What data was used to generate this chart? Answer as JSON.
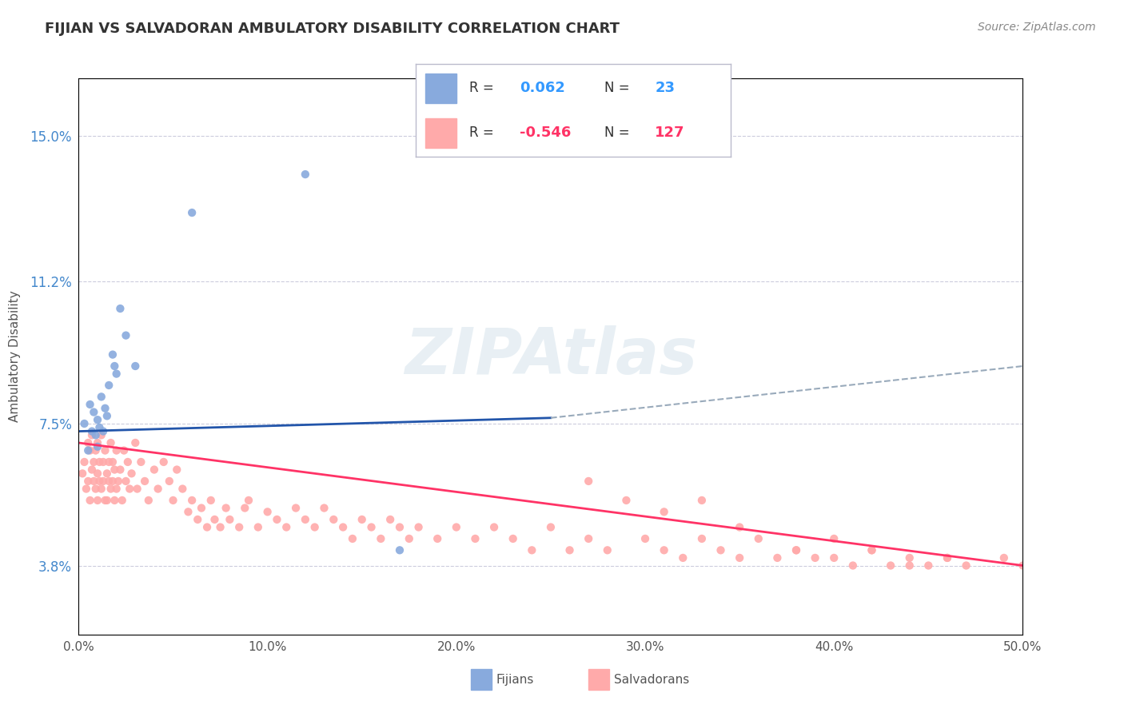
{
  "title": "FIJIAN VS SALVADORAN AMBULATORY DISABILITY CORRELATION CHART",
  "source": "Source: ZipAtlas.com",
  "ylabel": "Ambulatory Disability",
  "xlim": [
    0.0,
    0.5
  ],
  "ylim": [
    0.02,
    0.165
  ],
  "yticks": [
    0.038,
    0.075,
    0.112,
    0.15
  ],
  "ytick_labels": [
    "3.8%",
    "7.5%",
    "11.2%",
    "15.0%"
  ],
  "xticks": [
    0.0,
    0.1,
    0.2,
    0.3,
    0.4,
    0.5
  ],
  "xtick_labels": [
    "0.0%",
    "10.0%",
    "20.0%",
    "30.0%",
    "40.0%",
    "50.0%"
  ],
  "fijian_color": "#88AADD",
  "salvadoran_color": "#FFAAAA",
  "fijian_R": 0.062,
  "fijian_N": 23,
  "salvadoran_R": -0.546,
  "salvadoran_N": 127,
  "fijian_line_color": "#2255AA",
  "salvadoran_line_color": "#FF3366",
  "dashed_line_color": "#99AABB",
  "watermark": "ZIPAtlas",
  "legend_fijian_label": "Fijians",
  "legend_salvadoran_label": "Salvadorans",
  "background_color": "#FFFFFF",
  "grid_color": "#CCCCDD",
  "axis_label_color": "#4488CC",
  "title_color": "#333333",
  "fijian_line_start_y": 0.073,
  "fijian_line_end_y": 0.08,
  "fijian_line_dash_end_y": 0.09,
  "salvadoran_line_start_y": 0.07,
  "salvadoran_line_end_y": 0.038,
  "fijian_scatter_x": [
    0.003,
    0.005,
    0.006,
    0.007,
    0.008,
    0.009,
    0.01,
    0.01,
    0.011,
    0.012,
    0.013,
    0.014,
    0.015,
    0.016,
    0.018,
    0.019,
    0.02,
    0.022,
    0.025,
    0.03,
    0.06,
    0.12,
    0.17
  ],
  "fijian_scatter_y": [
    0.075,
    0.068,
    0.08,
    0.073,
    0.078,
    0.072,
    0.076,
    0.069,
    0.074,
    0.082,
    0.073,
    0.079,
    0.077,
    0.085,
    0.093,
    0.09,
    0.088,
    0.105,
    0.098,
    0.09,
    0.13,
    0.14,
    0.042
  ],
  "salvadoran_scatter_x": [
    0.002,
    0.003,
    0.004,
    0.005,
    0.005,
    0.006,
    0.006,
    0.007,
    0.007,
    0.008,
    0.008,
    0.009,
    0.009,
    0.01,
    0.01,
    0.01,
    0.011,
    0.011,
    0.012,
    0.012,
    0.013,
    0.013,
    0.014,
    0.014,
    0.015,
    0.015,
    0.016,
    0.016,
    0.017,
    0.017,
    0.018,
    0.018,
    0.019,
    0.019,
    0.02,
    0.02,
    0.021,
    0.022,
    0.023,
    0.024,
    0.025,
    0.026,
    0.027,
    0.028,
    0.03,
    0.031,
    0.033,
    0.035,
    0.037,
    0.04,
    0.042,
    0.045,
    0.048,
    0.05,
    0.052,
    0.055,
    0.058,
    0.06,
    0.063,
    0.065,
    0.068,
    0.07,
    0.072,
    0.075,
    0.078,
    0.08,
    0.085,
    0.088,
    0.09,
    0.095,
    0.1,
    0.105,
    0.11,
    0.115,
    0.12,
    0.125,
    0.13,
    0.135,
    0.14,
    0.145,
    0.15,
    0.155,
    0.16,
    0.165,
    0.17,
    0.175,
    0.18,
    0.19,
    0.2,
    0.21,
    0.22,
    0.23,
    0.24,
    0.25,
    0.26,
    0.27,
    0.28,
    0.3,
    0.31,
    0.32,
    0.33,
    0.34,
    0.35,
    0.36,
    0.37,
    0.38,
    0.39,
    0.4,
    0.41,
    0.42,
    0.43,
    0.44,
    0.45,
    0.46,
    0.47,
    0.49,
    0.5,
    0.33,
    0.35,
    0.27,
    0.29,
    0.31,
    0.38,
    0.4,
    0.42,
    0.44,
    0.46
  ],
  "salvadoran_scatter_y": [
    0.062,
    0.065,
    0.058,
    0.07,
    0.06,
    0.068,
    0.055,
    0.063,
    0.072,
    0.06,
    0.065,
    0.058,
    0.068,
    0.062,
    0.07,
    0.055,
    0.065,
    0.06,
    0.058,
    0.072,
    0.065,
    0.06,
    0.055,
    0.068,
    0.062,
    0.055,
    0.065,
    0.06,
    0.058,
    0.07,
    0.065,
    0.06,
    0.055,
    0.063,
    0.068,
    0.058,
    0.06,
    0.063,
    0.055,
    0.068,
    0.06,
    0.065,
    0.058,
    0.062,
    0.07,
    0.058,
    0.065,
    0.06,
    0.055,
    0.063,
    0.058,
    0.065,
    0.06,
    0.055,
    0.063,
    0.058,
    0.052,
    0.055,
    0.05,
    0.053,
    0.048,
    0.055,
    0.05,
    0.048,
    0.053,
    0.05,
    0.048,
    0.053,
    0.055,
    0.048,
    0.052,
    0.05,
    0.048,
    0.053,
    0.05,
    0.048,
    0.053,
    0.05,
    0.048,
    0.045,
    0.05,
    0.048,
    0.045,
    0.05,
    0.048,
    0.045,
    0.048,
    0.045,
    0.048,
    0.045,
    0.048,
    0.045,
    0.042,
    0.048,
    0.042,
    0.045,
    0.042,
    0.045,
    0.042,
    0.04,
    0.045,
    0.042,
    0.04,
    0.045,
    0.04,
    0.042,
    0.04,
    0.045,
    0.038,
    0.042,
    0.038,
    0.04,
    0.038,
    0.04,
    0.038,
    0.04,
    0.038,
    0.055,
    0.048,
    0.06,
    0.055,
    0.052,
    0.042,
    0.04,
    0.042,
    0.038,
    0.04
  ]
}
